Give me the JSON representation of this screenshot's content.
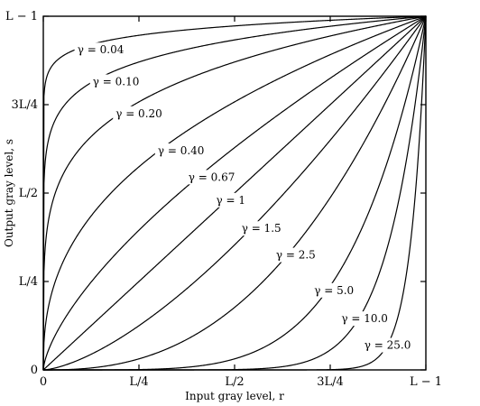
{
  "chart_data": {
    "type": "line",
    "xlabel": "Input gray level, r",
    "ylabel": "Output gray level, s",
    "xlim": [
      0,
      1
    ],
    "ylim": [
      0,
      1
    ],
    "x_ticks": [
      {
        "value": 0,
        "label": "0"
      },
      {
        "value": 0.25,
        "label": "L/4"
      },
      {
        "value": 0.5,
        "label": "L/2"
      },
      {
        "value": 0.75,
        "label": "3L/4"
      },
      {
        "value": 1,
        "label": "L − 1"
      }
    ],
    "y_ticks": [
      {
        "value": 0,
        "label": "0"
      },
      {
        "value": 0.25,
        "label": "L/4"
      },
      {
        "value": 0.5,
        "label": "L/2"
      },
      {
        "value": 0.75,
        "label": "3L/4"
      },
      {
        "value": 1,
        "label": "L − 1"
      }
    ],
    "grid": false,
    "series": [
      {
        "gamma": 0.04,
        "label": "γ = 0.04",
        "label_at": [
          0.15,
          0.905
        ]
      },
      {
        "gamma": 0.1,
        "label": "γ = 0.10",
        "label_at": [
          0.19,
          0.815
        ]
      },
      {
        "gamma": 0.2,
        "label": "γ = 0.20",
        "label_at": [
          0.25,
          0.725
        ]
      },
      {
        "gamma": 0.4,
        "label": "γ = 0.40",
        "label_at": [
          0.36,
          0.62
        ]
      },
      {
        "gamma": 0.67,
        "label": "γ = 0.67",
        "label_at": [
          0.44,
          0.545
        ]
      },
      {
        "gamma": 1.0,
        "label": "γ = 1",
        "label_at": [
          0.49,
          0.48
        ]
      },
      {
        "gamma": 1.5,
        "label": "γ = 1.5",
        "label_at": [
          0.57,
          0.4
        ]
      },
      {
        "gamma": 2.5,
        "label": "γ = 2.5",
        "label_at": [
          0.66,
          0.325
        ]
      },
      {
        "gamma": 5.0,
        "label": "γ = 5.0",
        "label_at": [
          0.76,
          0.225
        ]
      },
      {
        "gamma": 10.0,
        "label": "γ = 10.0",
        "label_at": [
          0.84,
          0.145
        ]
      },
      {
        "gamma": 25.0,
        "label": "γ = 25.0",
        "label_at": [
          0.9,
          0.07
        ]
      }
    ]
  }
}
